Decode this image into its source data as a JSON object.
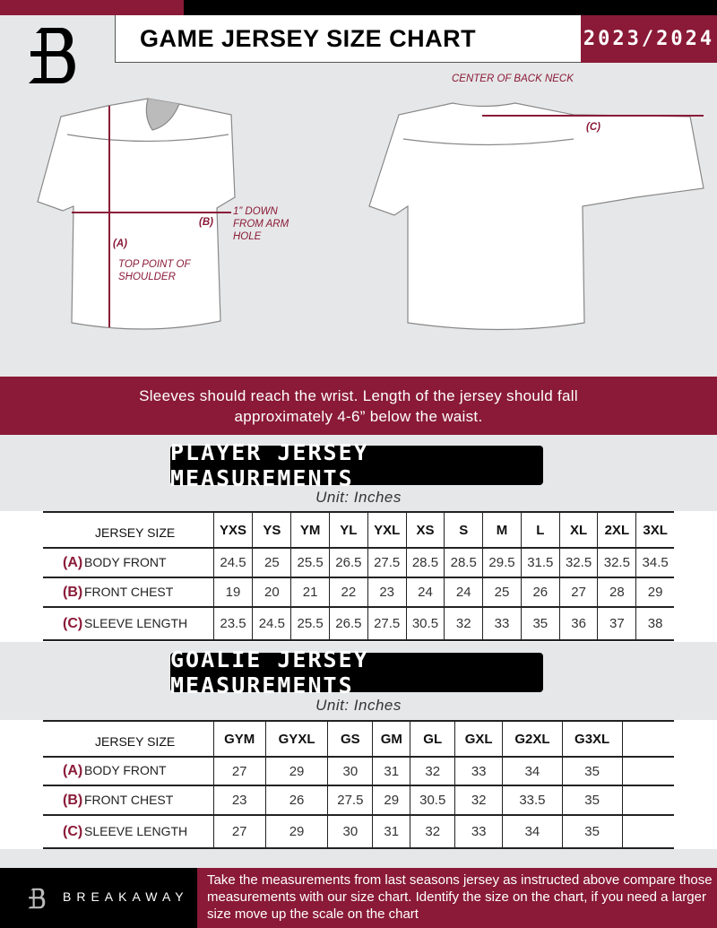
{
  "header": {
    "title": "GAME JERSEY SIZE CHART",
    "season": "2023/2024",
    "logo_letter": "B"
  },
  "diagram": {
    "center_back_neck": "CENTER OF BACK NECK",
    "label_a": "(A)",
    "label_b": "(B)",
    "label_c": "(C)",
    "top_point": "TOP POINT OF SHOULDER",
    "down_from_arm": "1” DOWN FROM ARM HOLE"
  },
  "instructions": {
    "line1": "Sleeves should reach the wrist. Length of the jersey should fall",
    "line2": "approximately 4-6” below the waist."
  },
  "player": {
    "title": "PLAYER JERSEY MEASUREMENTS",
    "unit": "Unit: Inches",
    "size_label": "JERSEY SIZE",
    "sizes": [
      "YXS",
      "YS",
      "YM",
      "YL",
      "YXL",
      "XS",
      "S",
      "M",
      "L",
      "XL",
      "2XL",
      "3XL"
    ],
    "rows": [
      {
        "letter": "(A)",
        "label": "BODY FRONT",
        "values": [
          "24.5",
          "25",
          "25.5",
          "26.5",
          "27.5",
          "28.5",
          "28.5",
          "29.5",
          "31.5",
          "32.5",
          "32.5",
          "34.5"
        ]
      },
      {
        "letter": "(B)",
        "label": "FRONT CHEST",
        "values": [
          "19",
          "20",
          "21",
          "22",
          "23",
          "24",
          "24",
          "25",
          "26",
          "27",
          "28",
          "29"
        ]
      },
      {
        "letter": "(C)",
        "label": "SLEEVE LENGTH",
        "values": [
          "23.5",
          "24.5",
          "25.5",
          "26.5",
          "27.5",
          "30.5",
          "32",
          "33",
          "35",
          "36",
          "37",
          "38"
        ]
      }
    ]
  },
  "goalie": {
    "title": "GOALIE JERSEY MEASUREMENTS",
    "unit": "Unit: Inches",
    "size_label": "JERSEY SIZE",
    "sizes": [
      "GYM",
      "GYXL",
      "GS",
      "GM",
      "GL",
      "GXL",
      "G2XL",
      "G3XL",
      ""
    ],
    "rows": [
      {
        "letter": "(A)",
        "label": "BODY FRONT",
        "values": [
          "27",
          "29",
          "30",
          "31",
          "32",
          "33",
          "34",
          "35",
          ""
        ]
      },
      {
        "letter": "(B)",
        "label": "FRONT CHEST",
        "values": [
          "23",
          "26",
          "27.5",
          "29",
          "30.5",
          "32",
          "33.5",
          "35",
          ""
        ]
      },
      {
        "letter": "(C)",
        "label": "SLEEVE LENGTH",
        "values": [
          "27",
          "29",
          "30",
          "31",
          "32",
          "33",
          "34",
          "35",
          ""
        ]
      }
    ]
  },
  "footer": {
    "brand": "BREAKAWAY",
    "text": "Take the measurements from last seasons jersey as instructed above compare those measurements  with our size chart. Identify the size on the chart, if you need a larger size move up the scale on the chart"
  },
  "colors": {
    "accent": "#8a1a37",
    "background": "#e6e7e8",
    "dark": "#000000"
  }
}
